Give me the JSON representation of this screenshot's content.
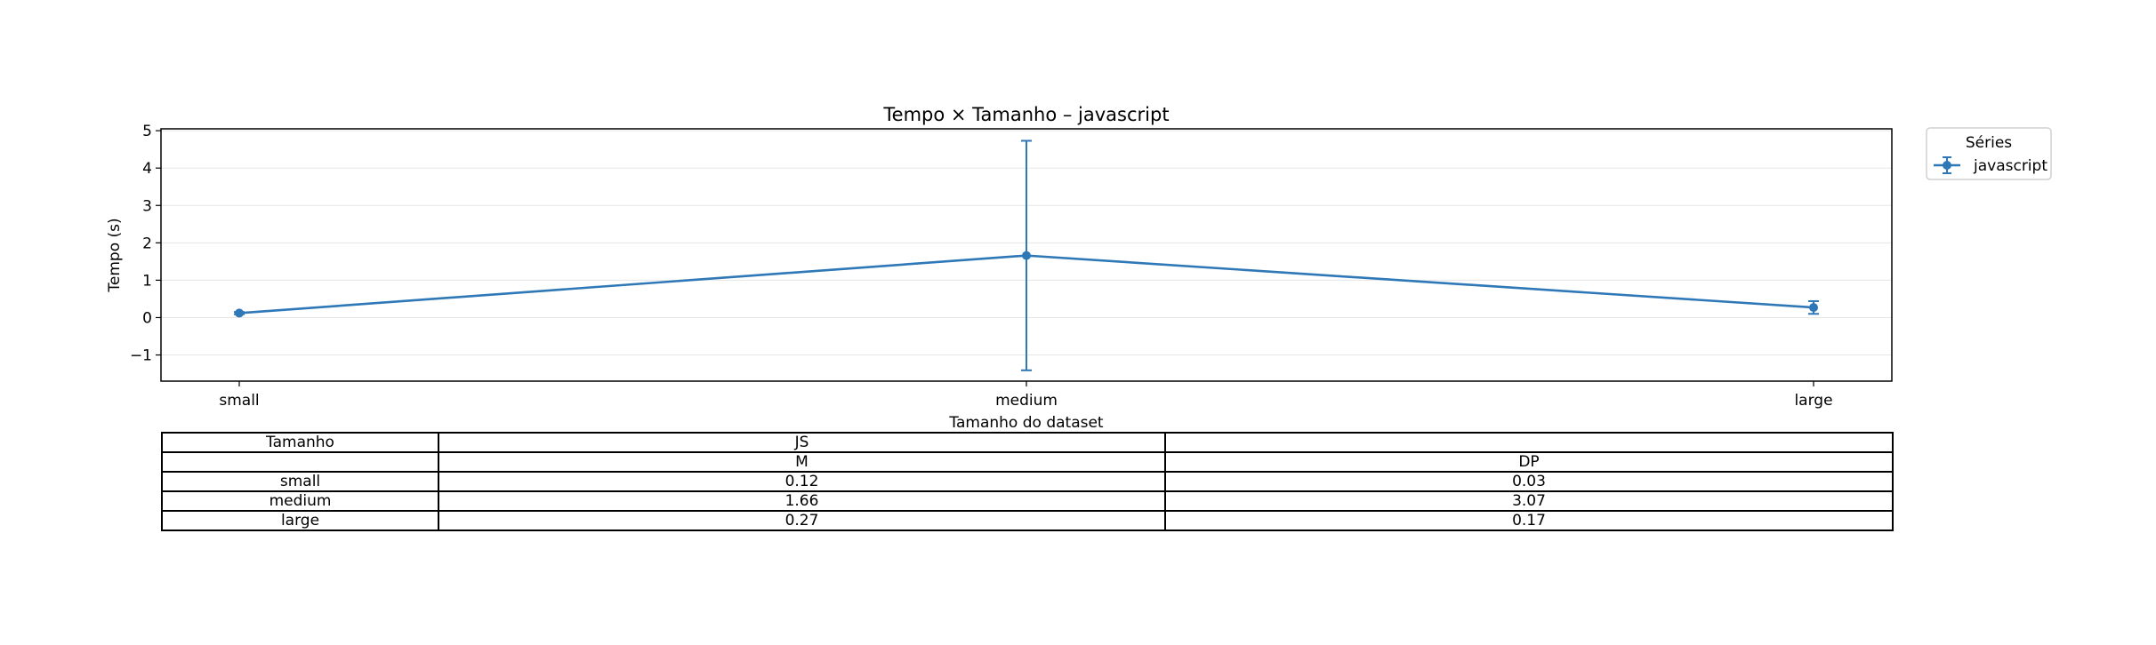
{
  "chart_data": {
    "type": "line",
    "title": "Tempo × Tamanho – javascript",
    "xlabel": "Tamanho do dataset",
    "ylabel": "Tempo (s)",
    "categories": [
      "small",
      "medium",
      "large"
    ],
    "ylim": [
      -1.7,
      5.05
    ],
    "yticks": [
      -1,
      0,
      1,
      2,
      3,
      4,
      5
    ],
    "grid": "horizontal",
    "error_bars": true,
    "legend": {
      "title": "Séries",
      "placement": "outside-top-right"
    },
    "series": [
      {
        "name": "javascript",
        "values": [
          0.12,
          1.66,
          0.27
        ],
        "errors": [
          0.03,
          3.07,
          0.17
        ],
        "color": "#2f78b7"
      }
    ]
  },
  "table": {
    "header1": [
      "Tamanho",
      "JS",
      ""
    ],
    "header2": [
      "",
      "M",
      "DP"
    ],
    "rows": [
      [
        "small",
        "0.12",
        "0.03"
      ],
      [
        "medium",
        "1.66",
        "3.07"
      ],
      [
        "large",
        "0.27",
        "0.17"
      ]
    ]
  }
}
